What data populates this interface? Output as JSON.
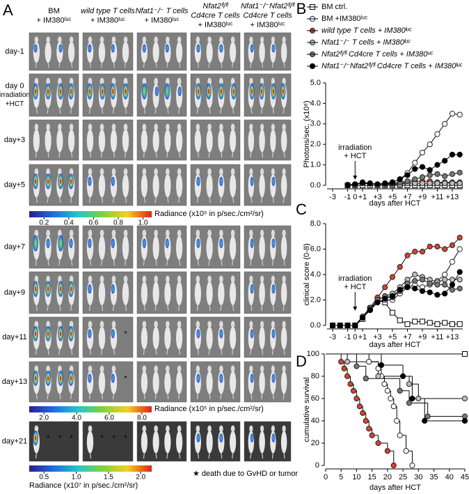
{
  "panel_a": {
    "label": "A",
    "columns": [
      [
        "BM",
        "+ IM380ˡᵘᶜ"
      ],
      [
        "wild type T cells",
        "+ IM380ˡᵘᶜ"
      ],
      [
        "Nfat1⁻/⁻ T cells",
        "+ IM380ˡᵘᶜ"
      ],
      [
        "Nfat2ᶠˡ/ᶠˡ",
        "Cd4cre T cells",
        "+ IM380ˡᵘᶜ"
      ],
      [
        "Nfat1⁻/⁻Nfat2ᶠˡ/ᶠˡ",
        "Cd4cre T cells",
        "+ IM380ˡᵘᶜ"
      ]
    ],
    "rows": [
      [
        "day-1"
      ],
      [
        "day 0",
        "irradiation",
        "+HCT"
      ],
      [
        "day+3"
      ],
      [
        "day+5"
      ],
      [
        "day+7"
      ],
      [
        "day+9"
      ],
      [
        "day+11"
      ],
      [
        "day+13"
      ],
      [
        "day+21"
      ]
    ],
    "asterisk": "*",
    "colorbars": [
      {
        "label": "Radiance (x10⁵ in p/sec./cm²/sr)",
        "lim": [
          0.08,
          1.07
        ],
        "ticks": [
          0.2,
          0.4,
          0.6,
          0.8,
          {
            "value": 1,
            "label": "1.0"
          }
        ]
      },
      {
        "label": "Radiance (x10⁵ in p/sec./cm²/sr)",
        "lim": [
          1.1,
          8.6
        ],
        "ticks": [
          {
            "value": 2,
            "label": "2.0"
          },
          {
            "value": 4,
            "label": "4.0"
          },
          {
            "value": 6,
            "label": "6.0"
          },
          {
            "value": 8,
            "label": "8.0"
          }
        ]
      },
      {
        "label": "Radiance (x10⁷ in p/sec./cm²/sr)",
        "lim": [
          0.27,
          2.17
        ],
        "ticks": [
          0.5,
          {
            "value": 1,
            "label": "1.0"
          },
          1.5,
          {
            "value": 2,
            "label": "2.0"
          }
        ]
      }
    ],
    "footnote": "★ death due to GvHD or tumor"
  },
  "chart_data": [
    {
      "type": "line",
      "panel": "B",
      "ylabel": "Photons/sec. (x10⁸)",
      "xlabel": "days after HCT",
      "annotation": [
        "irradiation",
        "+ HCT"
      ],
      "xlim": [
        -3.75,
        14.4
      ],
      "xticks": [
        -3,
        -1,
        0,
        {
          "value": 1,
          "label": "+1"
        },
        {
          "value": 3,
          "label": "+3"
        },
        {
          "value": 5,
          "label": "+5"
        },
        {
          "value": 7,
          "label": "+7"
        },
        {
          "value": 9,
          "label": "+9"
        },
        {
          "value": 11,
          "label": "+11"
        },
        {
          "value": 13,
          "label": "+13"
        }
      ],
      "ylim": [
        0,
        5
      ],
      "yticks": [
        {
          "value": 0,
          "label": "0.0"
        },
        {
          "value": 1,
          "label": "1.0"
        },
        {
          "value": 2,
          "label": "2.0"
        },
        {
          "value": 3,
          "label": "3.0"
        },
        {
          "value": 4,
          "label": "4.0"
        },
        {
          "value": 5,
          "label": "5.0"
        }
      ],
      "x": [
        -1,
        0,
        1,
        2,
        3,
        4,
        5,
        6,
        7,
        8,
        9,
        10,
        11,
        12,
        13,
        14
      ],
      "series": [
        {
          "name": "BM ctrl.",
          "marker": "square",
          "color": "#ffffff",
          "values": [
            0,
            0,
            0,
            0,
            0,
            0,
            0,
            0,
            0,
            0,
            0,
            0,
            0,
            0,
            0,
            0
          ]
        },
        {
          "name": "BM +IM380ˡᵘᶜ",
          "marker": "circle",
          "color": "#ffffff",
          "values": [
            0.02,
            0.05,
            0.1,
            0.08,
            0.05,
            0.1,
            0.15,
            0.3,
            0.6,
            1.1,
            1.6,
            2.0,
            2.5,
            3.0,
            3.5,
            3.45
          ]
        },
        {
          "name": "wild type T cells + IM380ˡᵘᶜ",
          "marker": "circle",
          "color": "#d9412b",
          "values": [
            0.02,
            0.05,
            0.12,
            0.1,
            0.05,
            0.05,
            0.1,
            0.1,
            0.15,
            0.2,
            0.2,
            0.2,
            0.15,
            0.15,
            0.15,
            0.15
          ]
        },
        {
          "name": "Nfat1⁻/⁻ T cells + IM380ˡᵘᶜ",
          "marker": "circle",
          "color": "#bdbdbd",
          "values": [
            0.02,
            0.05,
            0.1,
            0.08,
            0.05,
            0.05,
            0.05,
            0.05,
            0.1,
            0.1,
            0.1,
            0.1,
            0.1,
            0.1,
            0.1,
            0.1
          ]
        },
        {
          "name": "Nfat2ᶠˡ/ᶠˡ Cd4cre T cells + IM380ᵘᶜ",
          "marker": "circle",
          "color": "#777777",
          "values": [
            0.02,
            0.05,
            0.1,
            0.08,
            0.05,
            0.05,
            0.1,
            0.15,
            0.2,
            0.3,
            0.4,
            0.5,
            0.55,
            0.45,
            0.55,
            0.62
          ]
        },
        {
          "name": "Nfat1⁻/⁻Nfat2ᶠˡ/ᶠˡ Cd4cre T cells + IM380ˡᵘᶜ",
          "marker": "circle",
          "color": "#000000",
          "values": [
            0.02,
            0.05,
            0.15,
            0.1,
            0.05,
            0.1,
            0.15,
            0.3,
            0.5,
            0.8,
            0.9,
            0.75,
            1.0,
            1.2,
            1.5,
            1.5
          ]
        }
      ]
    },
    {
      "type": "line",
      "panel": "C",
      "ylabel": "clinical score (0-8)",
      "xlabel": "days after HCT",
      "annotation": [
        "irradiation",
        "+ HCT"
      ],
      "xlim": [
        -3.75,
        14.4
      ],
      "xticks": [
        -3,
        -1,
        0,
        {
          "value": 1,
          "label": "+1"
        },
        {
          "value": 3,
          "label": "+3"
        },
        {
          "value": 5,
          "label": "+5"
        },
        {
          "value": 7,
          "label": "+7"
        },
        {
          "value": 9,
          "label": "+9"
        },
        {
          "value": 11,
          "label": "+11"
        },
        {
          "value": 13,
          "label": "+13"
        }
      ],
      "ylim": [
        0,
        8
      ],
      "yticks": [
        {
          "value": 0,
          "label": "0.0"
        },
        {
          "value": 2,
          "label": "2.0"
        },
        {
          "value": 4,
          "label": "4.0"
        },
        {
          "value": 6,
          "label": "6.0"
        },
        {
          "value": 8,
          "label": "8.0"
        }
      ],
      "x": [
        -3,
        -2,
        -1,
        0,
        1,
        2,
        3,
        4,
        5,
        6,
        7,
        8,
        9,
        10,
        11,
        12,
        13,
        14
      ],
      "series": [
        {
          "marker": "square",
          "color": "#ffffff",
          "values": [
            0,
            0,
            0,
            0,
            0.5,
            1.3,
            2,
            1.8,
            1,
            0.4,
            0.1,
            0.3,
            0.3,
            0.2,
            0.1,
            0.2,
            0.1,
            0.1
          ]
        },
        {
          "marker": "circle",
          "color": "#ffffff",
          "values": [
            0,
            0,
            0,
            0,
            0.6,
            1.2,
            1.8,
            2,
            2,
            2.5,
            3,
            3.2,
            3,
            3.2,
            3.5,
            4,
            5,
            6
          ]
        },
        {
          "marker": "circle",
          "color": "#d9412b",
          "values": [
            0,
            0,
            0,
            0,
            0.7,
            1.4,
            2.2,
            3,
            3.8,
            4.6,
            5.5,
            5.8,
            5.8,
            6.2,
            6.2,
            6,
            6.3,
            6.9
          ]
        },
        {
          "marker": "circle",
          "color": "#bdbdbd",
          "values": [
            0,
            0,
            0,
            0,
            0.6,
            1.2,
            2,
            2.3,
            2.5,
            3,
            3.6,
            4,
            3.8,
            3.6,
            3.4,
            3.6,
            3.6,
            3.6
          ]
        },
        {
          "marker": "circle",
          "color": "#777777",
          "values": [
            0,
            0,
            0,
            0,
            0.6,
            1.3,
            2,
            2.3,
            2.2,
            2.7,
            3.3,
            3.5,
            3.6,
            3.3,
            3.2,
            3.2,
            2.8,
            2.9
          ]
        },
        {
          "marker": "circle",
          "color": "#000000",
          "values": [
            0,
            0,
            0,
            0,
            0.6,
            1.2,
            1.8,
            2.1,
            2.3,
            2.8,
            3,
            2.9,
            2.7,
            2.6,
            2.4,
            2.5,
            3.2,
            4.2
          ]
        }
      ]
    },
    {
      "type": "line",
      "drawstyle": "steps-post",
      "panel": "D",
      "ylabel": "cumulative survival",
      "xlabel": "days after HCT",
      "xlim": [
        0,
        45
      ],
      "xticks": [
        0,
        5,
        10,
        15,
        20,
        25,
        30,
        35,
        40,
        45
      ],
      "ylim": [
        0,
        100
      ],
      "yticks": [
        0,
        20,
        40,
        60,
        80,
        100
      ],
      "series": [
        {
          "marker": "square",
          "color": "#ffffff",
          "x": [
            0,
            45
          ],
          "values": [
            100,
            100
          ]
        },
        {
          "marker": "circle",
          "color": "#ffffff",
          "x": [
            0,
            14,
            17,
            18,
            19,
            20,
            21,
            22,
            23,
            24,
            26,
            28
          ],
          "values": [
            100,
            93,
            87,
            80,
            73,
            67,
            60,
            53,
            40,
            27,
            13,
            0
          ]
        },
        {
          "marker": "circle",
          "color": "#d9412b",
          "x": [
            0,
            5,
            6,
            7,
            8,
            9,
            10,
            11,
            12,
            13,
            14,
            15,
            17,
            20,
            22
          ],
          "values": [
            100,
            93,
            87,
            80,
            73,
            67,
            60,
            53,
            47,
            40,
            33,
            27,
            20,
            13,
            0
          ]
        },
        {
          "marker": "circle",
          "color": "#bdbdbd",
          "x": [
            0,
            7,
            17,
            27,
            30,
            45
          ],
          "values": [
            100,
            93,
            80,
            73,
            60,
            60
          ]
        },
        {
          "marker": "circle",
          "color": "#777777",
          "x": [
            0,
            10,
            13,
            24,
            27,
            33,
            45
          ],
          "values": [
            100,
            89,
            78,
            67,
            56,
            44,
            44
          ]
        },
        {
          "marker": "circle",
          "color": "#000000",
          "x": [
            0,
            18,
            25,
            28,
            32,
            45
          ],
          "values": [
            100,
            90,
            80,
            60,
            40,
            40
          ]
        }
      ]
    }
  ]
}
